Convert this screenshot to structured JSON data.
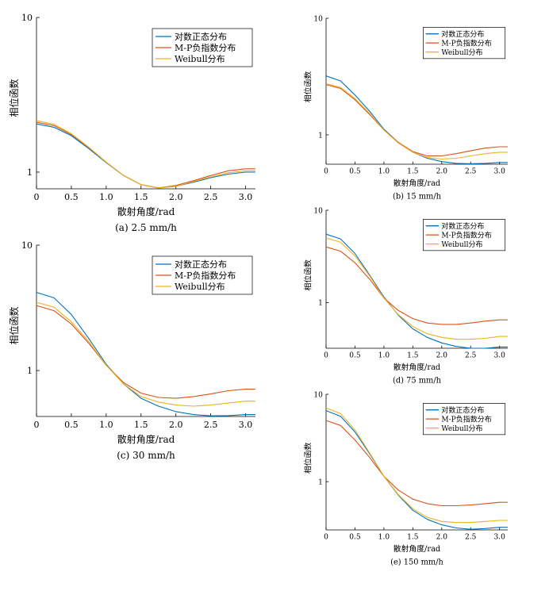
{
  "chart_data": [
    {
      "id": "a",
      "type": "line",
      "caption": "(a) 2.5 mm/h",
      "xlabel": "散射角度/rad",
      "ylabel": "相位函数",
      "xlim": [
        0,
        3.1416
      ],
      "ylim": [
        0.78,
        10
      ],
      "yscale": "log",
      "xticks": [
        "0",
        "0.5",
        "1.0",
        "1.5",
        "2.0",
        "2.5",
        "3.0"
      ],
      "yticks": [
        "1",
        "10"
      ],
      "legend_position": "top-right",
      "x": [
        0,
        0.25,
        0.5,
        0.75,
        1.0,
        1.25,
        1.5,
        1.75,
        2.0,
        2.25,
        2.5,
        2.75,
        3.0,
        3.14
      ],
      "series": [
        {
          "name": "对数正态分布",
          "color": "#0072BD",
          "values": [
            2.05,
            1.95,
            1.72,
            1.42,
            1.15,
            0.95,
            0.83,
            0.79,
            0.81,
            0.86,
            0.92,
            0.97,
            1.0,
            1.0
          ]
        },
        {
          "name": "M-P负指数分布",
          "color": "#D95319",
          "values": [
            2.1,
            2.0,
            1.75,
            1.44,
            1.16,
            0.95,
            0.83,
            0.79,
            0.82,
            0.88,
            0.95,
            1.02,
            1.05,
            1.05
          ]
        },
        {
          "name": "Weibull分布",
          "color": "#EDB120",
          "values": [
            2.15,
            2.04,
            1.77,
            1.45,
            1.16,
            0.95,
            0.83,
            0.79,
            0.81,
            0.87,
            0.93,
            0.99,
            1.02,
            1.02
          ]
        }
      ]
    },
    {
      "id": "b",
      "type": "line",
      "caption": "(b) 15 mm/h",
      "xlabel": "散射角度/rad",
      "ylabel": "相位函数",
      "xlim": [
        0,
        3.1416
      ],
      "ylim": [
        0.56,
        10
      ],
      "yscale": "log",
      "xticks": [
        "0",
        "0.5",
        "1.0",
        "1.5",
        "2.0",
        "2.5",
        "3.0"
      ],
      "yticks": [
        "1",
        "10"
      ],
      "legend_position": "top-right",
      "x": [
        0,
        0.25,
        0.5,
        0.75,
        1.0,
        1.25,
        1.5,
        1.75,
        2.0,
        2.25,
        2.5,
        2.75,
        3.0,
        3.14
      ],
      "series": [
        {
          "name": "对数正态分布",
          "color": "#0072BD",
          "values": [
            3.2,
            2.9,
            2.2,
            1.6,
            1.12,
            0.86,
            0.71,
            0.63,
            0.59,
            0.57,
            0.565,
            0.57,
            0.58,
            0.58
          ]
        },
        {
          "name": "M-P负指数分布",
          "color": "#D95319",
          "values": [
            2.7,
            2.5,
            2.0,
            1.5,
            1.1,
            0.86,
            0.72,
            0.66,
            0.66,
            0.69,
            0.73,
            0.77,
            0.79,
            0.79
          ]
        },
        {
          "name": "Weibull分布",
          "color": "#EDB120",
          "values": [
            2.75,
            2.55,
            2.05,
            1.53,
            1.1,
            0.85,
            0.71,
            0.64,
            0.62,
            0.63,
            0.66,
            0.69,
            0.71,
            0.71
          ]
        }
      ]
    },
    {
      "id": "c",
      "type": "line",
      "caption": "(c) 30 mm/h",
      "xlabel": "散射角度/rad",
      "ylabel": "相位函数",
      "xlim": [
        0,
        3.1416
      ],
      "ylim": [
        0.43,
        10
      ],
      "yscale": "log",
      "xticks": [
        "0",
        "0.5",
        "1.0",
        "1.5",
        "2.0",
        "2.5",
        "3.0"
      ],
      "yticks": [
        "1",
        "10"
      ],
      "legend_position": "top-right",
      "x": [
        0,
        0.25,
        0.5,
        0.75,
        1.0,
        1.25,
        1.5,
        1.75,
        2.0,
        2.25,
        2.5,
        2.75,
        3.0,
        3.14
      ],
      "series": [
        {
          "name": "对数正态分布",
          "color": "#0072BD",
          "values": [
            4.2,
            3.8,
            2.8,
            1.8,
            1.12,
            0.78,
            0.6,
            0.52,
            0.47,
            0.445,
            0.435,
            0.437,
            0.445,
            0.445
          ]
        },
        {
          "name": "M-P负指数分布",
          "color": "#D95319",
          "values": [
            3.3,
            3.0,
            2.35,
            1.65,
            1.1,
            0.8,
            0.66,
            0.61,
            0.6,
            0.62,
            0.65,
            0.69,
            0.71,
            0.71
          ]
        },
        {
          "name": "Weibull分布",
          "color": "#EDB120",
          "values": [
            3.5,
            3.2,
            2.45,
            1.7,
            1.1,
            0.78,
            0.62,
            0.56,
            0.53,
            0.52,
            0.53,
            0.55,
            0.57,
            0.57
          ]
        }
      ]
    },
    {
      "id": "d",
      "type": "line",
      "caption": "(d) 75 mm/h",
      "xlabel": "散射角度/rad",
      "ylabel": "相位函数",
      "xlim": [
        0,
        3.1416
      ],
      "ylim": [
        0.32,
        10
      ],
      "yscale": "log",
      "xticks": [
        "0",
        "0.5",
        "1.0",
        "1.5",
        "2.0",
        "2.5",
        "3.0"
      ],
      "yticks": [
        "1",
        "10"
      ],
      "legend_position": "top-right",
      "x": [
        0,
        0.25,
        0.5,
        0.75,
        1.0,
        1.25,
        1.5,
        1.75,
        2.0,
        2.25,
        2.5,
        2.75,
        3.0,
        3.14
      ],
      "series": [
        {
          "name": "对数正态分布",
          "color": "#0072BD",
          "values": [
            5.5,
            4.9,
            3.4,
            2.0,
            1.15,
            0.73,
            0.52,
            0.42,
            0.365,
            0.335,
            0.32,
            0.32,
            0.33,
            0.33
          ]
        },
        {
          "name": "M-P负指数分布",
          "color": "#D95319",
          "values": [
            4.0,
            3.6,
            2.7,
            1.8,
            1.12,
            0.82,
            0.67,
            0.6,
            0.58,
            0.58,
            0.6,
            0.63,
            0.65,
            0.65
          ]
        },
        {
          "name": "Weibull分布",
          "color": "#EDB120",
          "values": [
            5.0,
            4.5,
            3.2,
            1.95,
            1.12,
            0.74,
            0.55,
            0.46,
            0.42,
            0.4,
            0.4,
            0.41,
            0.43,
            0.43
          ]
        }
      ]
    },
    {
      "id": "e",
      "type": "line",
      "caption": "(e) 150 mm/h",
      "xlabel": "散射角度/rad",
      "ylabel": "相位函数",
      "xlim": [
        0,
        3.1416
      ],
      "ylim": [
        0.28,
        10
      ],
      "yscale": "log",
      "xticks": [
        "0",
        "0.5",
        "1.0",
        "1.5",
        "2.0",
        "2.5",
        "3.0"
      ],
      "yticks": [
        "1",
        "10"
      ],
      "legend_position": "top-right",
      "x": [
        0,
        0.25,
        0.5,
        0.75,
        1.0,
        1.25,
        1.5,
        1.75,
        2.0,
        2.25,
        2.5,
        2.75,
        3.0,
        3.14
      ],
      "series": [
        {
          "name": "对数正态分布",
          "color": "#0072BD",
          "values": [
            6.5,
            5.6,
            3.7,
            2.1,
            1.15,
            0.7,
            0.47,
            0.37,
            0.32,
            0.295,
            0.285,
            0.29,
            0.3,
            0.3
          ]
        },
        {
          "name": "M-P负指数分布",
          "color": "#D95319",
          "values": [
            5.0,
            4.4,
            3.0,
            1.9,
            1.15,
            0.8,
            0.63,
            0.56,
            0.53,
            0.53,
            0.54,
            0.56,
            0.58,
            0.58
          ]
        },
        {
          "name": "Weibull分布",
          "color": "#EDB120",
          "values": [
            7.0,
            6.0,
            3.9,
            2.15,
            1.15,
            0.71,
            0.49,
            0.39,
            0.35,
            0.34,
            0.34,
            0.35,
            0.36,
            0.36
          ]
        }
      ]
    }
  ]
}
